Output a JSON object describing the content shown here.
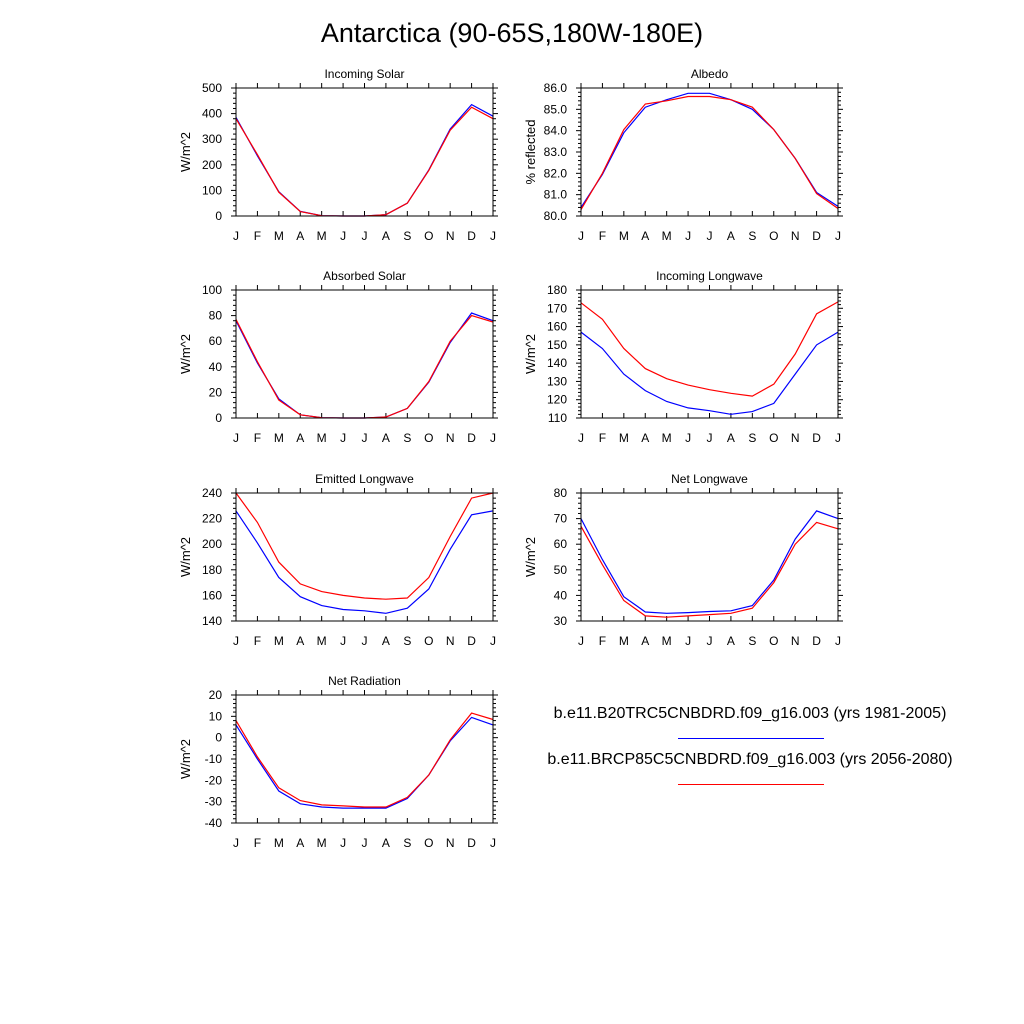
{
  "title": "Antarctica (90-65S,180W-180E)",
  "months": [
    "J",
    "F",
    "M",
    "A",
    "M",
    "J",
    "J",
    "A",
    "S",
    "O",
    "N",
    "D",
    "J"
  ],
  "colors": {
    "case1": "#0000ff",
    "case2": "#ff0000"
  },
  "legend": {
    "case1_label": "b.e11.B20TRC5CNBDRD.f09_g16.003 (yrs 1981-2005)",
    "case2_label": "b.e11.BRCP85C5CNBDRD.f09_g16.003 (yrs 2056-2080)"
  },
  "chart_data": [
    {
      "type": "line",
      "title": "Incoming Solar",
      "ylabel": "W/m^2",
      "ylim": [
        0,
        500
      ],
      "yticks": [
        0,
        100,
        200,
        300,
        400,
        500
      ],
      "ytick_labels": [
        "0",
        "100",
        "200",
        "300",
        "400",
        "500"
      ],
      "series": [
        {
          "name": "b.e11.B20TRC5CNBDRD.f09_g16.003 (yrs 1981-2005)",
          "color": "#0000ff",
          "values": [
            385,
            235,
            95,
            18,
            1,
            0,
            0,
            5,
            50,
            180,
            340,
            435,
            390
          ]
        },
        {
          "name": "b.e11.BRCP85C5CNBDRD.f09_g16.003 (yrs 2056-2080)",
          "color": "#ff0000",
          "values": [
            380,
            240,
            93,
            17,
            1,
            0,
            0,
            5,
            50,
            178,
            335,
            425,
            380
          ]
        }
      ]
    },
    {
      "type": "line",
      "title": "Albedo",
      "ylabel": "% reflected",
      "ylim": [
        80.0,
        86.0
      ],
      "yticks": [
        80,
        81,
        82,
        83,
        84,
        85,
        86
      ],
      "ytick_labels": [
        "80.0",
        "81.0",
        "82.0",
        "83.0",
        "84.0",
        "85.0",
        "86.0"
      ],
      "series": [
        {
          "name": "b.e11.B20TRC5CNBDRD.f09_g16.003 (yrs 1981-2005)",
          "color": "#0000ff",
          "values": [
            80.4,
            81.95,
            83.9,
            85.1,
            85.45,
            85.75,
            85.75,
            85.45,
            85.0,
            84.05,
            82.7,
            81.1,
            80.45
          ]
        },
        {
          "name": "b.e11.BRCP85C5CNBDRD.f09_g16.003 (yrs 2056-2080)",
          "color": "#ff0000",
          "values": [
            80.3,
            82.0,
            84.05,
            85.25,
            85.4,
            85.6,
            85.6,
            85.45,
            85.1,
            84.05,
            82.7,
            81.05,
            80.35
          ]
        }
      ]
    },
    {
      "type": "line",
      "title": "Absorbed Solar",
      "ylabel": "W/m^2",
      "ylim": [
        0,
        100
      ],
      "yticks": [
        0,
        20,
        40,
        60,
        80,
        100
      ],
      "ytick_labels": [
        "0",
        "20",
        "40",
        "60",
        "80",
        "100"
      ],
      "series": [
        {
          "name": "b.e11.B20TRC5CNBDRD.f09_g16.003 (yrs 1981-2005)",
          "color": "#0000ff",
          "values": [
            76,
            43,
            15,
            2.5,
            0.2,
            0,
            0,
            0.8,
            7.5,
            28,
            59,
            82,
            76
          ]
        },
        {
          "name": "b.e11.BRCP85C5CNBDRD.f09_g16.003 (yrs 2056-2080)",
          "color": "#ff0000",
          "values": [
            77,
            44,
            14,
            2.5,
            0.2,
            0,
            0,
            0.8,
            7.5,
            28.5,
            60,
            80,
            75
          ]
        }
      ]
    },
    {
      "type": "line",
      "title": "Incoming Longwave",
      "ylabel": "W/m^2",
      "ylim": [
        110,
        180
      ],
      "yticks": [
        110,
        120,
        130,
        140,
        150,
        160,
        170,
        180
      ],
      "ytick_labels": [
        "110",
        "120",
        "130",
        "140",
        "150",
        "160",
        "170",
        "180"
      ],
      "series": [
        {
          "name": "b.e11.B20TRC5CNBDRD.f09_g16.003 (yrs 1981-2005)",
          "color": "#0000ff",
          "values": [
            157,
            148,
            134,
            125,
            119,
            115.5,
            114,
            112,
            113.5,
            118,
            134,
            150,
            157
          ]
        },
        {
          "name": "b.e11.BRCP85C5CNBDRD.f09_g16.003 (yrs 2056-2080)",
          "color": "#ff0000",
          "values": [
            173,
            164,
            148,
            137,
            131.5,
            128,
            125.5,
            123.5,
            122,
            128.5,
            145,
            167,
            173.5
          ]
        }
      ]
    },
    {
      "type": "line",
      "title": "Emitted Longwave",
      "ylabel": "W/m^2",
      "ylim": [
        140,
        240
      ],
      "yticks": [
        140,
        160,
        180,
        200,
        220,
        240
      ],
      "ytick_labels": [
        "140",
        "160",
        "180",
        "200",
        "220",
        "240"
      ],
      "series": [
        {
          "name": "b.e11.B20TRC5CNBDRD.f09_g16.003 (yrs 1981-2005)",
          "color": "#0000ff",
          "values": [
            226,
            201,
            174,
            159,
            152,
            149,
            148,
            146,
            150,
            165,
            196,
            223,
            226
          ]
        },
        {
          "name": "b.e11.BRCP85C5CNBDRD.f09_g16.003 (yrs 2056-2080)",
          "color": "#ff0000",
          "values": [
            240,
            217,
            186,
            169,
            163,
            160,
            158,
            157,
            158,
            174,
            206,
            236,
            240
          ]
        }
      ]
    },
    {
      "type": "line",
      "title": "Net Longwave",
      "ylabel": "W/m^2",
      "ylim": [
        30,
        80
      ],
      "yticks": [
        30,
        40,
        50,
        60,
        70,
        80
      ],
      "ytick_labels": [
        "30",
        "40",
        "50",
        "60",
        "70",
        "80"
      ],
      "series": [
        {
          "name": "b.e11.B20TRC5CNBDRD.f09_g16.003 (yrs 1981-2005)",
          "color": "#0000ff",
          "values": [
            70,
            54,
            39.5,
            33.5,
            33,
            33.3,
            33.7,
            34,
            36,
            46,
            62,
            73,
            70
          ]
        },
        {
          "name": "b.e11.BRCP85C5CNBDRD.f09_g16.003 (yrs 2056-2080)",
          "color": "#ff0000",
          "values": [
            67,
            52,
            38,
            32,
            31.5,
            32,
            32.5,
            33,
            35,
            45,
            60,
            68.5,
            66
          ]
        }
      ]
    },
    {
      "type": "line",
      "title": "Net Radiation",
      "ylabel": "W/m^2",
      "ylim": [
        -40,
        20
      ],
      "yticks": [
        -40,
        -30,
        -20,
        -10,
        0,
        10,
        20
      ],
      "ytick_labels": [
        "-40",
        "-30",
        "-20",
        "-10",
        "0",
        "10",
        "20"
      ],
      "series": [
        {
          "name": "b.e11.B20TRC5CNBDRD.f09_g16.003 (yrs 1981-2005)",
          "color": "#0000ff",
          "values": [
            6,
            -10,
            -25,
            -31,
            -32.5,
            -33,
            -33,
            -33,
            -28.5,
            -17.5,
            -1.5,
            9.5,
            6
          ]
        },
        {
          "name": "b.e11.BRCP85C5CNBDRD.f09_g16.003 (yrs 2056-2080)",
          "color": "#ff0000",
          "values": [
            8,
            -9,
            -23.5,
            -29.5,
            -31.5,
            -32,
            -32.5,
            -32.5,
            -28,
            -17.5,
            -1,
            11.5,
            8.5
          ]
        }
      ]
    }
  ]
}
